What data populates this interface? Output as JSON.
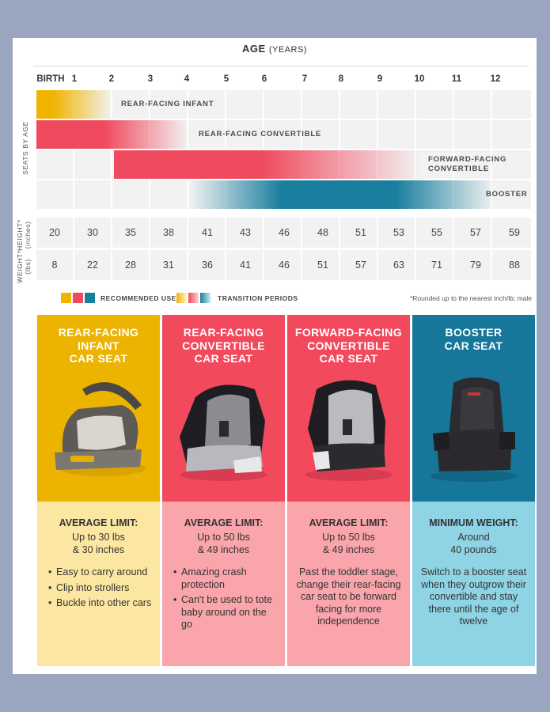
{
  "header": {
    "title_main": "AGE",
    "title_sub": "(YEARS)",
    "age_labels": [
      "BIRTH",
      "1",
      "2",
      "3",
      "4",
      "5",
      "6",
      "7",
      "8",
      "9",
      "10",
      "11",
      "12"
    ]
  },
  "side_labels": {
    "seats_by_age": "SEATS BY AGE",
    "height": "HEIGHT*",
    "height_unit": "(inches)",
    "weight": "WEIGHT*",
    "weight_unit": "(lbs)"
  },
  "bars": [
    {
      "label": "REAR-FACING INFANT",
      "start_age": 0,
      "end_age": 2,
      "color": "#f0b400"
    },
    {
      "label": "REAR-FACING CONVERTIBLE",
      "start_age": 0,
      "end_age": 4,
      "color": "#f04a5e"
    },
    {
      "label_line1": "FORWARD-FACING",
      "label_line2": "CONVERTIBLE",
      "start_age": 2,
      "end_age": 10,
      "color": "#f04a5e"
    },
    {
      "label": "BOOSTER",
      "start_age": 4,
      "end_age": 12,
      "color": "#1a7f9e"
    }
  ],
  "heights": [
    "20",
    "30",
    "35",
    "38",
    "41",
    "43",
    "46",
    "48",
    "51",
    "53",
    "55",
    "57",
    "59"
  ],
  "weights": [
    "8",
    "22",
    "28",
    "31",
    "36",
    "41",
    "46",
    "51",
    "57",
    "63",
    "71",
    "79",
    "88"
  ],
  "legend": {
    "recommended": "RECOMMENDED USE",
    "transition": "TRANSITION PERIODS",
    "note": "*Rounded up to the nearest inch/lb; male",
    "colors": {
      "yellow": "#f0b400",
      "red": "#f04a5e",
      "blue": "#1a7f9e"
    }
  },
  "columns": [
    {
      "title": [
        "REAR-FACING",
        "INFANT",
        "CAR SEAT"
      ],
      "top_color": "#ecb300",
      "bottom_color": "#fbe7a1",
      "image_icon": "infant-car-seat-icon",
      "limit_head": "AVERAGE LIMIT:",
      "limit_lines": [
        "Up to 30 lbs",
        "& 30 inches"
      ],
      "bullets": [
        "Easy to carry around",
        "Clip into strollers",
        "Buckle into other cars"
      ]
    },
    {
      "title": [
        "REAR-FACING",
        "CONVERTIBLE",
        "CAR SEAT"
      ],
      "top_color": "#f2495d",
      "bottom_color": "#f9a5ab",
      "image_icon": "convertible-car-seat-icon",
      "limit_head": "AVERAGE LIMIT:",
      "limit_lines": [
        "Up to 50 lbs",
        "& 49 inches"
      ],
      "bullets": [
        "Amazing crash protection",
        "Can't be used to tote baby around on the go"
      ]
    },
    {
      "title": [
        "FORWARD-FACING",
        "CONVERTIBLE",
        "CAR SEAT"
      ],
      "top_color": "#f2495d",
      "bottom_color": "#f9a5ab",
      "image_icon": "forward-convertible-car-seat-icon",
      "limit_head": "AVERAGE LIMIT:",
      "limit_lines": [
        "Up to 50 lbs",
        "& 49 inches"
      ],
      "paragraph": "Past the toddler stage, change their rear-facing car seat to be forward facing for more independence"
    },
    {
      "title": [
        "BOOSTER",
        "CAR SEAT"
      ],
      "top_color": "#17779a",
      "bottom_color": "#8fd4e4",
      "image_icon": "booster-car-seat-icon",
      "limit_head": "MINIMUM WEIGHT:",
      "limit_lines": [
        "Around",
        "40 pounds"
      ],
      "paragraph": "Switch to a booster seat when they outgrow their convertible and stay there until the age of twelve"
    }
  ]
}
